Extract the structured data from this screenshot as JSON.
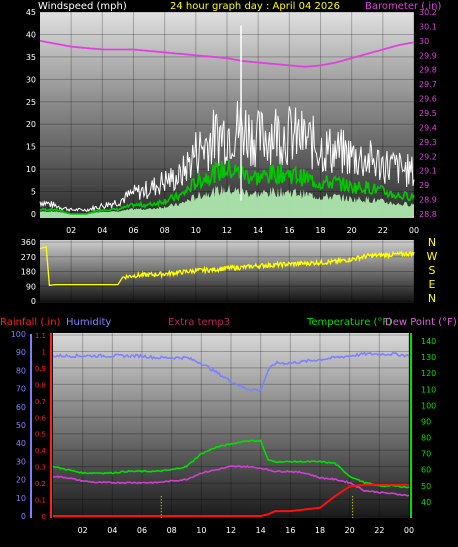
{
  "header": {
    "wind_label": "Windspeed (mph)",
    "title": "24 hour graph day : April 04 2026",
    "baro_label": "Barometer (.in)"
  },
  "lower_header": {
    "rain_label": "Rainfall (.in)",
    "humidity_label": "Humidity",
    "extra_label": "Extra temp3",
    "temp_label": "Temperature (°F)",
    "dew_label": "Dew Point (°F)"
  },
  "time_ticks": [
    "02",
    "04",
    "06",
    "08",
    "10",
    "12",
    "14",
    "16",
    "18",
    "20",
    "22",
    "00"
  ],
  "colors": {
    "wind_gust": "#ffffff",
    "wind_avg": "#00c800",
    "wind_fill": "#b4f0b4",
    "barometer": "#e040e0",
    "direction": "#ffff00",
    "humidity": "#8080ff",
    "temperature": "#00e000",
    "dewpoint": "#d040d0",
    "rainfall": "#ff1010",
    "rain_rate": "#ffff00"
  },
  "chart_data": [
    {
      "type": "line",
      "name": "wind",
      "x_label_values": [
        "02",
        "04",
        "06",
        "08",
        "10",
        "12",
        "14",
        "16",
        "18",
        "20",
        "22",
        "00"
      ],
      "ylabel": "Windspeed (mph)",
      "ylim": [
        0,
        45
      ],
      "yticks": [
        0,
        5,
        10,
        15,
        20,
        25,
        30,
        35,
        40,
        45
      ],
      "y2label": "Barometer (.in)",
      "y2lim": [
        28.8,
        30.2
      ],
      "y2ticks": [
        "28.8",
        "28.9",
        "29",
        "29.1",
        "29.2",
        "29.3",
        "29.4",
        "29.5",
        "29.6",
        "29.7",
        "29.8",
        "29.9",
        "30",
        "30.1",
        "30.2"
      ],
      "hours": [
        0,
        1,
        2,
        3,
        4,
        5,
        6,
        7,
        8,
        9,
        10,
        11,
        12,
        13,
        14,
        15,
        16,
        17,
        18,
        19,
        20,
        21,
        22,
        23,
        24
      ],
      "series": [
        {
          "key": "gust",
          "values": [
            3,
            2,
            1,
            1,
            2,
            3,
            5,
            6,
            8,
            9,
            15,
            18,
            20,
            21,
            18,
            20,
            19,
            18,
            16,
            15,
            14,
            13,
            12,
            11,
            10
          ]
        },
        {
          "key": "avg",
          "values": [
            1,
            1,
            0,
            0,
            1,
            1,
            2,
            2,
            3,
            4,
            7,
            9,
            10,
            9,
            8,
            9,
            9,
            8,
            7,
            7,
            6,
            6,
            5,
            4,
            4
          ]
        },
        {
          "key": "barometer",
          "values": [
            30.0,
            29.98,
            29.96,
            29.95,
            29.94,
            29.94,
            29.94,
            29.93,
            29.92,
            29.91,
            29.9,
            29.89,
            29.88,
            29.86,
            29.85,
            29.84,
            29.83,
            29.82,
            29.83,
            29.85,
            29.88,
            29.91,
            29.94,
            29.97,
            29.99
          ]
        }
      ],
      "spike": {
        "hour": 12.9,
        "value": 42
      }
    },
    {
      "type": "line",
      "name": "direction",
      "ylim": [
        0,
        360
      ],
      "yticks": [
        0,
        90,
        180,
        270,
        360
      ],
      "compass": [
        "N",
        "W",
        "S",
        "E",
        "N"
      ],
      "hours": [
        0,
        0.4,
        0.6,
        1,
        2,
        3,
        4,
        5,
        5.3,
        6,
        7,
        8,
        9,
        10,
        11,
        12,
        13,
        14,
        15,
        16,
        17,
        18,
        19,
        20,
        21,
        22,
        23,
        24
      ],
      "values": [
        320,
        330,
        95,
        100,
        100,
        100,
        100,
        100,
        145,
        155,
        160,
        165,
        175,
        185,
        190,
        200,
        205,
        215,
        220,
        225,
        230,
        235,
        240,
        255,
        275,
        280,
        285,
        290
      ]
    },
    {
      "type": "line",
      "name": "temperature_humidity_rain",
      "left_ylabel": "Rainfall (.in)",
      "left_ylim": [
        0,
        1.1
      ],
      "left_yticks": [
        "0",
        "0.1",
        "0.2",
        "0.3",
        "0.4",
        "0.5",
        "0.6",
        "0.7",
        "0.8",
        "0.9",
        "1",
        "1.1"
      ],
      "humidity_ylim": [
        0,
        100
      ],
      "humidity_yticks": [
        0,
        10,
        20,
        30,
        40,
        50,
        60,
        70,
        80,
        90,
        100
      ],
      "right_ylabel": "Temperature (°F)",
      "right_ylim": [
        30,
        145
      ],
      "right_yticks": [
        40,
        50,
        60,
        70,
        80,
        90,
        100,
        110,
        120,
        130,
        140
      ],
      "hours": [
        0,
        1,
        2,
        3,
        4,
        5,
        6,
        7,
        8,
        9,
        10,
        11,
        12,
        13,
        14,
        14.5,
        15,
        16,
        17,
        18,
        19,
        20,
        21,
        22,
        23,
        24
      ],
      "series": [
        {
          "key": "humidity",
          "values": [
            88,
            88,
            88,
            88,
            88,
            88,
            88,
            87,
            87,
            87,
            84,
            79,
            74,
            70,
            69,
            80,
            84,
            84,
            85,
            86,
            87,
            88,
            89,
            89,
            89,
            88
          ]
        },
        {
          "key": "temperature",
          "values": [
            62,
            60,
            58,
            58,
            58,
            59,
            59,
            59,
            60,
            62,
            70,
            74,
            76,
            78,
            78,
            66,
            65,
            65,
            65,
            65,
            64,
            56,
            52,
            50,
            50,
            49
          ]
        },
        {
          "key": "dewpoint",
          "values": [
            56,
            55,
            53,
            52,
            52,
            52,
            52,
            52,
            53,
            54,
            58,
            60,
            62,
            62,
            61,
            60,
            59,
            59,
            58,
            55,
            54,
            52,
            47,
            46,
            45,
            44
          ]
        },
        {
          "key": "rainfall",
          "values": [
            0,
            0,
            0,
            0,
            0,
            0,
            0,
            0,
            0,
            0,
            0,
            0,
            0,
            0,
            0,
            0.01,
            0.03,
            0.03,
            0.04,
            0.05,
            0.12,
            0.18,
            0.19,
            0.19,
            0.19,
            0.19
          ]
        }
      ],
      "rain_rate_marks": [
        7.3,
        20.2
      ]
    }
  ]
}
